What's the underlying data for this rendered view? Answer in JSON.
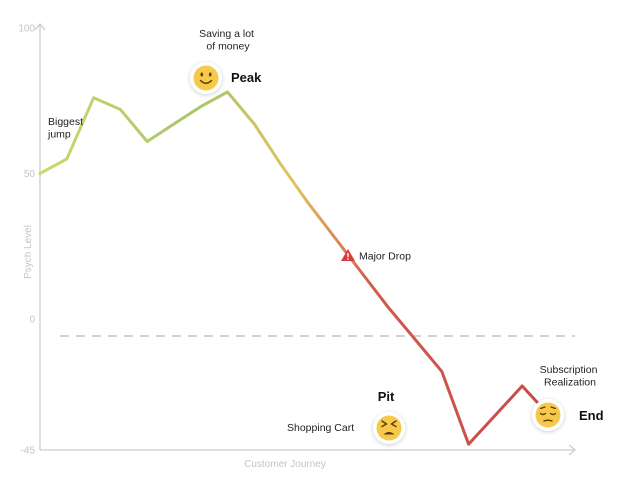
{
  "chart_data": {
    "type": "line",
    "xlabel": "Customer Journey",
    "ylabel": "Psych Level",
    "yticks": [
      100,
      50,
      0,
      -45
    ],
    "ylim": [
      -45,
      100
    ],
    "grid": false,
    "reference_line": {
      "y": 0,
      "style": "dashed"
    },
    "series": [
      {
        "x": [
          0,
          1,
          2,
          3,
          4,
          5,
          6,
          7,
          8,
          9,
          10,
          11,
          12,
          13,
          14,
          15,
          16,
          17,
          18,
          19
        ],
        "values": [
          50,
          55,
          76,
          72,
          61,
          67,
          73,
          78,
          67,
          53,
          40,
          28,
          16,
          4,
          -7,
          -18,
          -43,
          -33,
          -23,
          -33
        ]
      }
    ],
    "gradient_colors": [
      "#cfd86c",
      "#a8c56a",
      "#e2c25f",
      "#cf5c4e",
      "#c94848"
    ],
    "annotations": [
      {
        "id": "biggest-jump",
        "text": "Biggest\njump"
      },
      {
        "id": "saving",
        "text": "Saving a lot\nof money"
      },
      {
        "id": "major-drop",
        "text": "Major Drop",
        "icon": "warning-icon",
        "icon_color": "#d93b3b"
      },
      {
        "id": "shopping-cart",
        "text": "Shopping Cart"
      },
      {
        "id": "subscription",
        "text": "Subscription\nRealization"
      }
    ],
    "markers": [
      {
        "id": "peak",
        "label": "Peak",
        "icon": "smile-emoji-icon"
      },
      {
        "id": "pit",
        "label": "Pit",
        "icon": "tired-emoji-icon"
      },
      {
        "id": "end",
        "label": "End",
        "icon": "pensive-emoji-icon"
      }
    ]
  }
}
